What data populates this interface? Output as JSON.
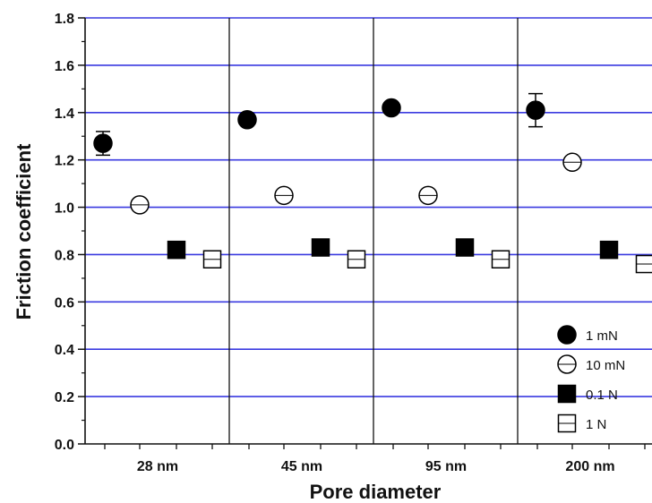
{
  "chart_data": {
    "type": "scatter",
    "title": "",
    "xlabel": "Pore diameter",
    "ylabel": "Friction coefficient",
    "ylim": [
      0,
      1.8
    ],
    "y_ticks": [
      "0.0",
      "0.2",
      "0.4",
      "0.6",
      "0.8",
      "1.0",
      "1.2",
      "1.4",
      "1.6",
      "1.8"
    ],
    "categories": [
      "28 nm",
      "45 nm",
      "95 nm",
      "200 nm"
    ],
    "grid": true,
    "legend_position": "bottom-right",
    "colors": {
      "grid": "#3a3ae0",
      "axis": "#111111",
      "marker": "#000000"
    },
    "series": [
      {
        "name": "1 mN",
        "marker": "filled-circle",
        "values": [
          1.27,
          1.37,
          1.42,
          1.41
        ],
        "error": [
          0.05,
          0,
          0,
          0.07
        ]
      },
      {
        "name": "10 mN",
        "marker": "open-circle",
        "values": [
          1.01,
          1.05,
          1.05,
          1.19
        ],
        "error": [
          0,
          0,
          0,
          0
        ]
      },
      {
        "name": "0.1 N",
        "marker": "filled-square",
        "values": [
          0.82,
          0.83,
          0.83,
          0.82
        ],
        "error": [
          0,
          0,
          0,
          0
        ]
      },
      {
        "name": "1 N",
        "marker": "open-square",
        "values": [
          0.78,
          0.78,
          0.78,
          0.76
        ],
        "error": [
          0,
          0,
          0,
          0
        ]
      }
    ]
  }
}
